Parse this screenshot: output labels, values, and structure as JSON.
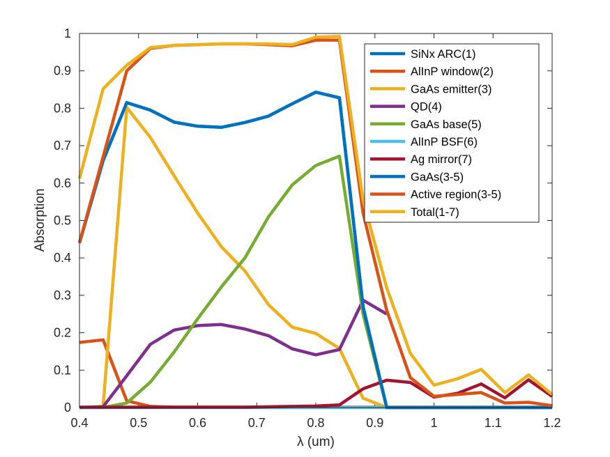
{
  "chart_data": {
    "type": "line",
    "title": "",
    "xlabel": "λ (um)",
    "ylabel": "Absorption",
    "xlim": [
      0.4,
      1.2
    ],
    "ylim": [
      0,
      1
    ],
    "xticks": [
      "0.4",
      "0.5",
      "0.6",
      "0.7",
      "0.8",
      "0.9",
      "1",
      "1.1",
      "1.2"
    ],
    "yticks": [
      "0",
      "0.1",
      "0.2",
      "0.3",
      "0.4",
      "0.5",
      "0.6",
      "0.7",
      "0.8",
      "0.9",
      "1"
    ],
    "grid": false,
    "legend_position": "top-right",
    "x": [
      0.4,
      0.44,
      0.48,
      0.52,
      0.56,
      0.6,
      0.64,
      0.68,
      0.72,
      0.76,
      0.8,
      0.84,
      0.88,
      0.92,
      0.96,
      1.0,
      1.04,
      1.08,
      1.12,
      1.16,
      1.2
    ],
    "series": [
      {
        "name": "SiNx ARC(1)",
        "color": "#0072BD",
        "values": [
          0.44,
          0.66,
          0.815,
          0.795,
          0.763,
          0.752,
          0.749,
          0.762,
          0.779,
          0.812,
          0.843,
          0.828,
          0.27,
          0.0,
          0.0,
          0.0,
          0.0,
          0.0,
          0.0,
          0.0,
          0.0
        ]
      },
      {
        "name": "AlInP window(2)",
        "color": "#D95319",
        "values": [
          0.174,
          0.181,
          0.018,
          0.003,
          0.001,
          0.001,
          0.001,
          0.001,
          0.001,
          0.001,
          0.001,
          0.001,
          0.001,
          0.001,
          0.001,
          0.001,
          0.001,
          0.001,
          0.001,
          0.001,
          0.001
        ]
      },
      {
        "name": "GaAs emitter(3)",
        "color": "#EDB120",
        "values": [
          0.0,
          0.003,
          0.802,
          0.722,
          0.62,
          0.52,
          0.43,
          0.365,
          0.275,
          0.215,
          0.198,
          0.158,
          0.025,
          0.0,
          0.0,
          0.0,
          0.0,
          0.0,
          0.0,
          0.0,
          0.0
        ]
      },
      {
        "name": "QD(4)",
        "color": "#7E2F8E",
        "values": [
          0.0,
          0.002,
          0.085,
          0.169,
          0.207,
          0.219,
          0.222,
          0.21,
          0.192,
          0.157,
          0.141,
          0.155,
          0.287,
          0.25,
          null,
          null,
          null,
          null,
          null,
          null,
          null
        ]
      },
      {
        "name": "GaAs base(5)",
        "color": "#77AC30",
        "values": [
          0.0,
          0.0,
          0.012,
          0.068,
          0.148,
          0.237,
          0.322,
          0.4,
          0.51,
          0.595,
          0.647,
          0.672,
          0.25,
          0.0,
          null,
          null,
          null,
          null,
          null,
          null,
          null
        ]
      },
      {
        "name": "AlInP BSF(6)",
        "color": "#4DBEEE",
        "values": [
          0.0,
          0.0,
          0.0,
          0.0,
          0.0,
          0.0,
          0.0,
          0.0,
          0.0,
          0.0,
          0.0,
          0.0,
          0.0,
          0.0,
          0.0,
          0.0,
          0.0,
          0.0,
          0.0,
          0.0,
          0.0
        ]
      },
      {
        "name": "Ag mirror(7)",
        "color": "#A2142F",
        "values": [
          0.001,
          0.001,
          0.001,
          0.001,
          0.001,
          0.001,
          0.001,
          0.001,
          0.002,
          0.003,
          0.004,
          0.007,
          0.05,
          0.073,
          0.067,
          0.028,
          0.038,
          0.063,
          0.026,
          0.074,
          0.03
        ]
      },
      {
        "name": "GaAs(3-5)",
        "color": "#0072BD",
        "values": [
          0.44,
          0.66,
          0.815,
          0.795,
          0.763,
          0.752,
          0.749,
          0.762,
          0.779,
          0.812,
          0.843,
          0.828,
          0.27,
          0.0,
          0.0,
          0.0,
          0.0,
          0.0,
          0.0,
          0.0,
          0.0
        ]
      },
      {
        "name": "Active region(3-5)",
        "color": "#D95319",
        "values": [
          0.44,
          0.67,
          0.9,
          0.96,
          0.968,
          0.97,
          0.972,
          0.972,
          0.97,
          0.967,
          0.982,
          0.982,
          0.52,
          0.26,
          0.08,
          0.03,
          0.035,
          0.04,
          0.012,
          0.014,
          0.005
        ]
      },
      {
        "name": "Total(1-7)",
        "color": "#EDB120",
        "values": [
          0.612,
          0.852,
          0.915,
          0.962,
          0.968,
          0.97,
          0.972,
          0.972,
          0.972,
          0.97,
          0.99,
          0.992,
          0.555,
          0.32,
          0.145,
          0.06,
          0.077,
          0.102,
          0.04,
          0.087,
          0.035
        ]
      }
    ]
  }
}
